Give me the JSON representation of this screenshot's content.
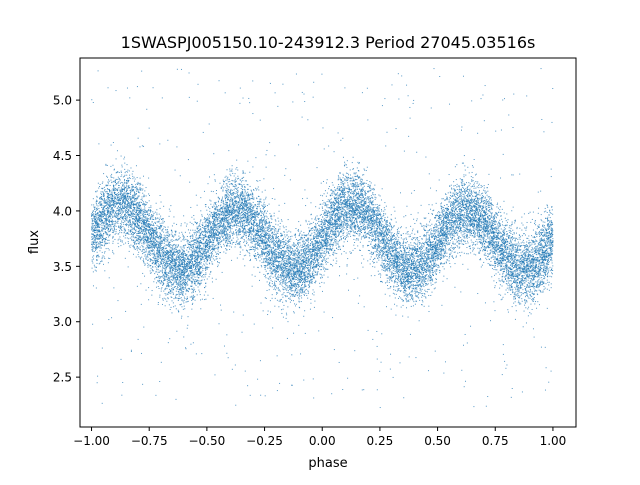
{
  "chart_data": {
    "type": "scatter",
    "title": "1SWASPJ005150.10-243912.3 Period 27045.03516s",
    "xlabel": "phase",
    "ylabel": "flux",
    "xlim": [
      -1.05,
      1.1
    ],
    "ylim": [
      2.05,
      5.38
    ],
    "x_ticks": [
      -1.0,
      -0.75,
      -0.5,
      -0.25,
      0.0,
      0.25,
      0.5,
      0.75,
      1.0
    ],
    "x_tick_labels": [
      "−1.00",
      "−0.75",
      "−0.50",
      "−0.25",
      "0.00",
      "0.25",
      "0.50",
      "0.75",
      "1.00"
    ],
    "y_ticks": [
      2.5,
      3.0,
      3.5,
      4.0,
      4.5,
      5.0
    ],
    "y_tick_labels": [
      "2.5",
      "3.0",
      "3.5",
      "4.0",
      "4.5",
      "5.0"
    ],
    "grid": false,
    "marker_color": "#1f77b4",
    "series": [
      {
        "phase_range": [
          -1.0,
          1.0
        ],
        "mean_flux": 3.75,
        "primary_amplitude": 0.28,
        "maxima_phase": [
          -0.85,
          -0.38,
          0.13,
          0.62
        ],
        "minima_phase": [
          -0.62,
          -0.12,
          0.4,
          0.9
        ],
        "scatter_sd": 0.16,
        "outlier_range": [
          2.2,
          5.3
        ],
        "point_count": 18000
      }
    ]
  }
}
